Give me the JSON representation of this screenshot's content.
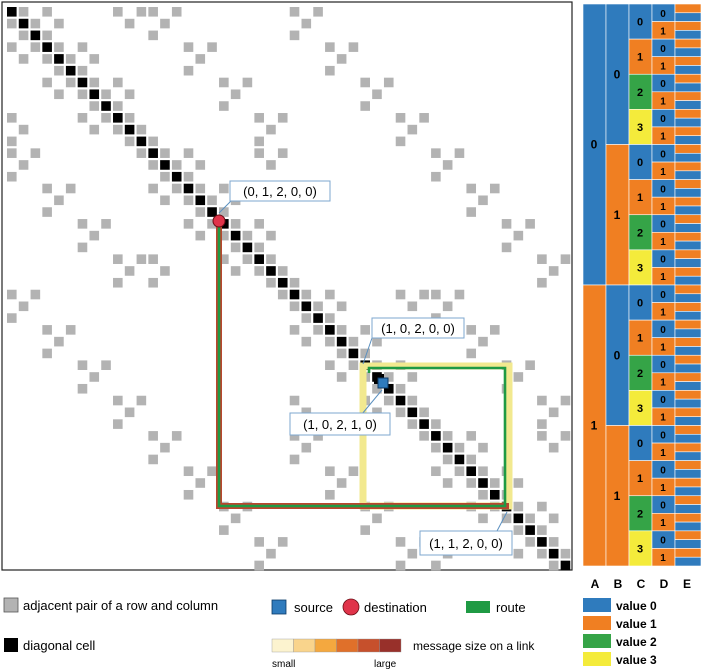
{
  "matrix": {
    "node_labels": [
      {
        "id": "destination",
        "text": "(0, 1, 2, 0, 0)"
      },
      {
        "id": "waypoint",
        "text": "(1, 0, 2, 0, 0)"
      },
      {
        "id": "source",
        "text": "(1, 0, 2, 1, 0)"
      },
      {
        "id": "corner",
        "text": "(1, 1, 2, 0, 0)"
      }
    ]
  },
  "hierarchy": {
    "axis_labels": [
      "A",
      "B",
      "C",
      "D",
      "E"
    ],
    "value_colors": [
      "#2f7bbd",
      "#f07f22",
      "#35a447",
      "#f4eb3b"
    ]
  },
  "legend": {
    "adjacent": "adjacent pair of a row and column",
    "diagonal": "diagonal cell",
    "source": "source",
    "destination": "destination",
    "route": "route",
    "message_size": "message size on a link",
    "small": "small",
    "large": "large",
    "values": [
      "value 0",
      "value 1",
      "value 2",
      "value 3"
    ],
    "ramp_colors": [
      "#fcf3cf",
      "#f9d48c",
      "#f4a83f",
      "#e0702a",
      "#c6502c",
      "#98302a"
    ]
  },
  "colors": {
    "adjacent_cell": "#b3b3b3",
    "diagonal_cell": "#000000",
    "route": "#1f9a44",
    "route_glow_yellow": "#f2e98f",
    "route_glow_red": "#b8462e",
    "source": "#2f7bbd",
    "destination": "#e0344a"
  }
}
